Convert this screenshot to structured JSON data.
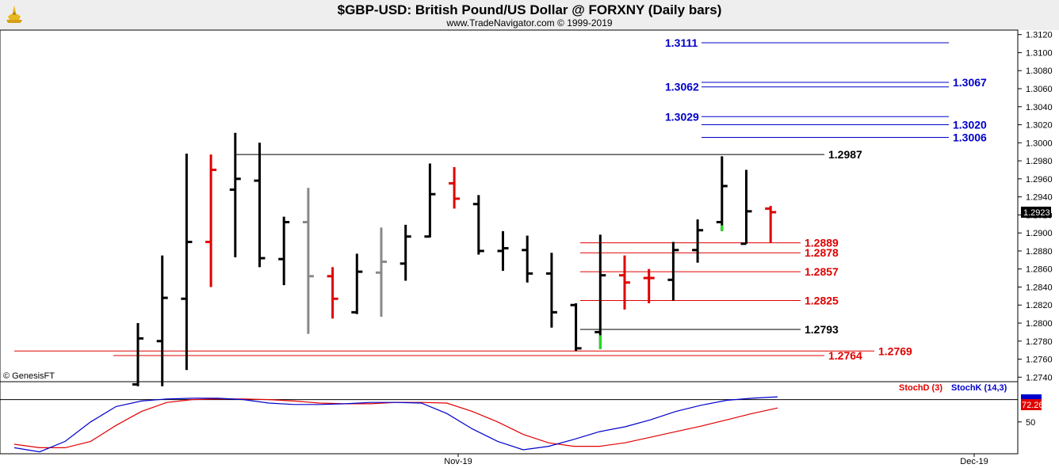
{
  "header": {
    "title": "$GBP-USD:  British Pound/US Dollar @ FORXNY  (Daily bars)",
    "subtitle": "www.TradeNavigator.com © 1999-2019"
  },
  "credit": "© GenesisFT",
  "colors": {
    "black": "#000000",
    "red": "#e00000",
    "gray": "#888888",
    "blue": "#0000cc",
    "green": "#22dd22"
  },
  "chart_data": [
    {
      "type": "bar",
      "subtype": "ohlc",
      "ylim": [
        1.2735,
        1.3125
      ],
      "y_ticks": [
        "1.2740",
        "1.2760",
        "1.2780",
        "1.2800",
        "1.2820",
        "1.2840",
        "1.2860",
        "1.2880",
        "1.2900",
        "1.2920",
        "1.2940",
        "1.2960",
        "1.2980",
        "1.3000",
        "1.3020",
        "1.3040",
        "1.3060",
        "1.3080",
        "1.3100",
        "1.3120"
      ],
      "x_labels": [
        "Nov-19",
        "Dec-19"
      ],
      "current_price": "1.2923",
      "bars": [
        {
          "o": 1.2732,
          "h": 1.28,
          "l": 1.273,
          "c": 1.2783,
          "color": "black"
        },
        {
          "o": 1.278,
          "h": 1.2875,
          "l": 1.273,
          "c": 1.2828,
          "color": "black"
        },
        {
          "o": 1.2827,
          "h": 1.2988,
          "l": 1.2748,
          "c": 1.289,
          "color": "black"
        },
        {
          "o": 1.289,
          "h": 1.2987,
          "l": 1.284,
          "c": 1.297,
          "color": "red"
        },
        {
          "o": 1.2948,
          "h": 1.3011,
          "l": 1.2873,
          "c": 1.296,
          "color": "black"
        },
        {
          "o": 1.2958,
          "h": 1.3,
          "l": 1.2862,
          "c": 1.2872,
          "color": "black"
        },
        {
          "o": 1.2871,
          "h": 1.2918,
          "l": 1.2842,
          "c": 1.2912,
          "color": "black"
        },
        {
          "o": 1.2912,
          "h": 1.295,
          "l": 1.2788,
          "c": 1.2852,
          "color": "gray"
        },
        {
          "o": 1.2852,
          "h": 1.2862,
          "l": 1.2805,
          "c": 1.2827,
          "color": "red"
        },
        {
          "o": 1.2812,
          "h": 1.2877,
          "l": 1.281,
          "c": 1.2857,
          "color": "black"
        },
        {
          "o": 1.2856,
          "h": 1.2906,
          "l": 1.2807,
          "c": 1.2868,
          "color": "gray"
        },
        {
          "o": 1.2866,
          "h": 1.2909,
          "l": 1.2847,
          "c": 1.2896,
          "color": "black"
        },
        {
          "o": 1.2896,
          "h": 1.2977,
          "l": 1.2895,
          "c": 1.2943,
          "color": "black"
        },
        {
          "o": 1.2955,
          "h": 1.2973,
          "l": 1.2927,
          "c": 1.2938,
          "color": "red"
        },
        {
          "o": 1.2932,
          "h": 1.2942,
          "l": 1.2876,
          "c": 1.288,
          "color": "black"
        },
        {
          "o": 1.288,
          "h": 1.2902,
          "l": 1.2858,
          "c": 1.2883,
          "color": "black"
        },
        {
          "o": 1.2881,
          "h": 1.2897,
          "l": 1.2845,
          "c": 1.2855,
          "color": "black"
        },
        {
          "o": 1.2855,
          "h": 1.2878,
          "l": 1.2795,
          "c": 1.2812,
          "color": "black"
        },
        {
          "o": 1.282,
          "h": 1.2822,
          "l": 1.2769,
          "c": 1.2772,
          "color": "black"
        },
        {
          "o": 1.279,
          "h": 1.2898,
          "l": 1.2771,
          "c": 1.2853,
          "color": "black",
          "low_green": true
        },
        {
          "o": 1.2853,
          "h": 1.2875,
          "l": 1.2815,
          "c": 1.2845,
          "color": "red"
        },
        {
          "o": 1.285,
          "h": 1.286,
          "l": 1.2822,
          "c": 1.285,
          "color": "red"
        },
        {
          "o": 1.2848,
          "h": 1.289,
          "l": 1.2825,
          "c": 1.2881,
          "color": "black"
        },
        {
          "o": 1.2881,
          "h": 1.2915,
          "l": 1.2867,
          "c": 1.2903,
          "color": "black"
        },
        {
          "o": 1.2912,
          "h": 1.2985,
          "l": 1.2902,
          "c": 1.2952,
          "color": "black",
          "low_green": true
        },
        {
          "o": 1.2888,
          "h": 1.297,
          "l": 1.2888,
          "c": 1.2924,
          "color": "black"
        },
        {
          "o": 1.2927,
          "h": 1.293,
          "l": 1.2889,
          "c": 1.2923,
          "color": "red"
        }
      ],
      "levels": [
        {
          "label": "1.3111",
          "value": 1.3111,
          "color": "blue",
          "x1": 885,
          "x2": 1197,
          "label_side": "left"
        },
        {
          "label": "1.3067",
          "value": 1.3067,
          "color": "blue",
          "x1": 885,
          "x2": 1197,
          "label_side": "right"
        },
        {
          "label": "1.3062",
          "value": 1.3062,
          "color": "blue",
          "x1": 885,
          "x2": 1197,
          "label_side": "left"
        },
        {
          "label": "1.3029",
          "value": 1.3029,
          "color": "blue",
          "x1": 885,
          "x2": 1197,
          "label_side": "left"
        },
        {
          "label": "1.3020",
          "value": 1.302,
          "color": "blue",
          "x1": 885,
          "x2": 1197,
          "label_side": "right"
        },
        {
          "label": "1.3006",
          "value": 1.3006,
          "color": "blue",
          "x1": 885,
          "x2": 1197,
          "label_side": "right"
        },
        {
          "label": "1.2987",
          "value": 1.2987,
          "color": "black",
          "x1": 298,
          "x2": 1040,
          "label_side": "right"
        },
        {
          "label": "1.2889",
          "value": 1.2889,
          "color": "red",
          "x1": 732,
          "x2": 1010,
          "label_side": "right"
        },
        {
          "label": "1.2878",
          "value": 1.2878,
          "color": "red",
          "x1": 732,
          "x2": 1010,
          "label_side": "right"
        },
        {
          "label": "1.2857",
          "value": 1.2857,
          "color": "red",
          "x1": 732,
          "x2": 1010,
          "label_side": "right"
        },
        {
          "label": "1.2825",
          "value": 1.2825,
          "color": "red",
          "x1": 732,
          "x2": 1010,
          "label_side": "right"
        },
        {
          "label": "1.2793",
          "value": 1.2793,
          "color": "black",
          "x1": 732,
          "x2": 1010,
          "label_side": "right"
        },
        {
          "label": "1.2769",
          "value": 1.2769,
          "color": "red",
          "x1": 18,
          "x2": 1103,
          "label_side": "right"
        },
        {
          "label": "1.2764",
          "value": 1.2764,
          "color": "red",
          "x1": 143,
          "x2": 1040,
          "label_side": "right"
        }
      ]
    },
    {
      "type": "line",
      "title": "Stochastic",
      "ylim": [
        0,
        100
      ],
      "y_tick": "50",
      "current_value": "72.26",
      "series": [
        {
          "name": "StochD (3)",
          "color": "red",
          "values": [
            8,
            3,
            3,
            12,
            35,
            55,
            68,
            72,
            73,
            73,
            72,
            70,
            67,
            66,
            66,
            68,
            68,
            67,
            55,
            40,
            22,
            10,
            5,
            5,
            10,
            18,
            26,
            34,
            43,
            52,
            60
          ]
        },
        {
          "name": "StochK (14,3)",
          "color": "blue",
          "values": [
            3,
            -3,
            12,
            40,
            62,
            70,
            73,
            74,
            74,
            72,
            67,
            65,
            65,
            66,
            68,
            68,
            67,
            52,
            30,
            12,
            0,
            5,
            15,
            26,
            33,
            43,
            55,
            64,
            71,
            74,
            76
          ]
        }
      ]
    }
  ]
}
